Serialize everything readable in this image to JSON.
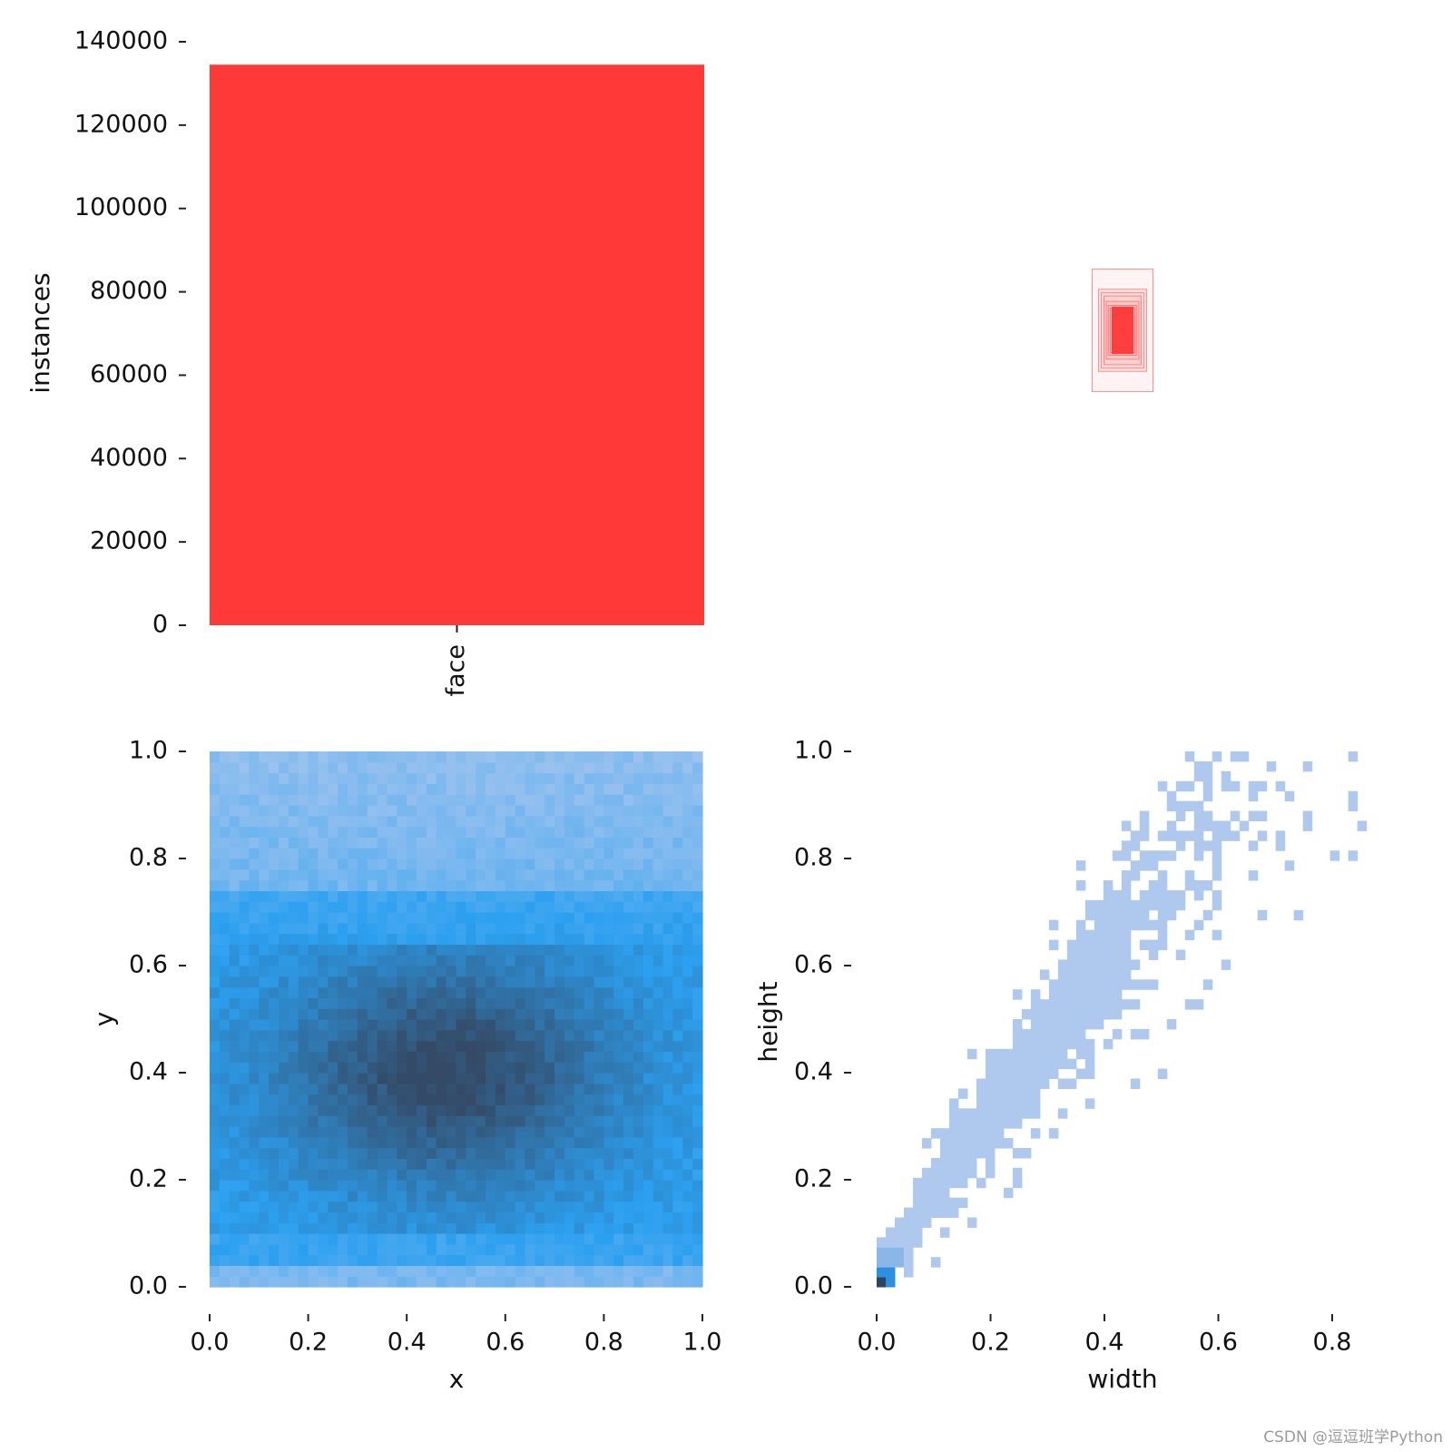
{
  "chart_data": [
    {
      "type": "bar",
      "categories": [
        "face"
      ],
      "values": [
        134500
      ],
      "ylabel": "instances",
      "ylim": [
        0,
        140000
      ],
      "yticks": [
        "0",
        "20000",
        "40000",
        "60000",
        "80000",
        "100000",
        "120000",
        "140000"
      ],
      "color": "#ff3838"
    },
    {
      "type": "boxes",
      "description_color": "#ff3838",
      "boxes": [
        {
          "w": 0.123,
          "h": 0.248
        },
        {
          "w": 0.097,
          "h": 0.166
        },
        {
          "w": 0.086,
          "h": 0.153
        },
        {
          "w": 0.075,
          "h": 0.139
        },
        {
          "w": 0.066,
          "h": 0.117
        },
        {
          "w": 0.058,
          "h": 0.101
        },
        {
          "w": 0.05,
          "h": 0.09
        },
        {
          "w": 0.042,
          "h": 0.081
        },
        {
          "w": 0.035,
          "h": 0.07
        },
        {
          "w": 0.003,
          "h": 0.006
        }
      ]
    },
    {
      "type": "heatmap",
      "xlabel": "x",
      "ylabel": "y",
      "xlim": [
        0,
        1
      ],
      "ylim": [
        0,
        1
      ],
      "xticks": [
        "0.0",
        "0.2",
        "0.4",
        "0.6",
        "0.8",
        "1.0"
      ],
      "yticks": [
        "0.0",
        "0.2",
        "0.4",
        "0.6",
        "0.8",
        "1.0"
      ],
      "peak_center": [
        0.48,
        0.4
      ]
    },
    {
      "type": "heatmap",
      "xlabel": "width",
      "ylabel": "height",
      "xlim": [
        0,
        0.86
      ],
      "ylim": [
        0,
        1
      ],
      "xticks": [
        "0.0",
        "0.2",
        "0.4",
        "0.6",
        "0.8"
      ],
      "yticks": [
        "0.0",
        "0.2",
        "0.4",
        "0.6",
        "0.8",
        "1.0"
      ],
      "peak_center": [
        0.01,
        0.01
      ]
    }
  ],
  "watermark": "CSDN @逗逗班学Python"
}
